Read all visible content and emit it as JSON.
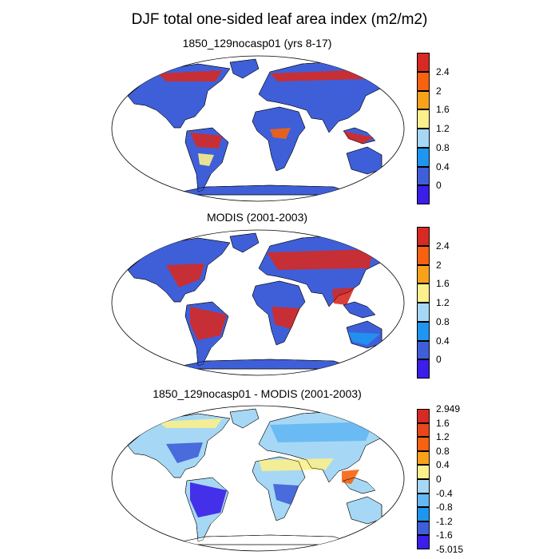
{
  "title": "DJF total one-sided leaf area index (m2/m2)",
  "chart_data": [
    {
      "type": "heatmap",
      "subtitle": "1850_129nocasp01 (yrs 8-17)",
      "colorbar": {
        "colors": [
          "#3b1ee8",
          "#3f5fd9",
          "#1e96f0",
          "#a6d8f5",
          "#fbf08c",
          "#f8a21b",
          "#f6620f",
          "#d62a23"
        ],
        "tick_labels": [
          "0",
          "0.4",
          "0.8",
          "1.2",
          "1.6",
          "2",
          "2.4"
        ]
      },
      "regions": [
        {
          "name": "boreal-north-america",
          "level": "high"
        },
        {
          "name": "boreal-eurasia",
          "level": "high"
        },
        {
          "name": "amazon",
          "level": "high"
        },
        {
          "name": "southeast-asia-maritime",
          "level": "high"
        },
        {
          "name": "central-africa",
          "level": "high"
        },
        {
          "name": "oceans-land-default",
          "level": "low"
        }
      ]
    },
    {
      "type": "heatmap",
      "subtitle": "MODIS (2001-2003)",
      "colorbar": {
        "colors": [
          "#3b1ee8",
          "#3f5fd9",
          "#1e96f0",
          "#a6d8f5",
          "#fbf08c",
          "#f8a21b",
          "#f6620f",
          "#d62a23"
        ],
        "tick_labels": [
          "0",
          "0.4",
          "0.8",
          "1.2",
          "1.6",
          "2",
          "2.4"
        ]
      },
      "regions": [
        {
          "name": "eastern-north-america",
          "level": "high"
        },
        {
          "name": "europe-siberia",
          "level": "high"
        },
        {
          "name": "amazon",
          "level": "high"
        },
        {
          "name": "southern-africa",
          "level": "high"
        },
        {
          "name": "southeast-asia",
          "level": "high"
        },
        {
          "name": "australia",
          "level": "low"
        }
      ]
    },
    {
      "type": "heatmap",
      "subtitle": "1850_129nocasp01 - MODIS (2001-2003)",
      "colorbar": {
        "colors": [
          "#3b1ee8",
          "#3f5fd9",
          "#1e96f0",
          "#64b8f4",
          "#a6d8f5",
          "#fbf08c",
          "#f8a21b",
          "#f6620f",
          "#e8471a",
          "#d62a23"
        ],
        "tick_labels": [
          "-5.015",
          "-1.6",
          "-1.2",
          "-0.8",
          "-0.4",
          "0",
          "0.4",
          "0.8",
          "1.2",
          "1.6",
          "2.949"
        ]
      },
      "regions": [
        {
          "name": "amazon",
          "level": "negative"
        },
        {
          "name": "eastern-north-america",
          "level": "negative"
        },
        {
          "name": "southern-africa",
          "level": "negative"
        },
        {
          "name": "sahara-arabia",
          "level": "zero"
        },
        {
          "name": "boreal-north",
          "level": "zero"
        },
        {
          "name": "southeast-asia",
          "level": "positive"
        }
      ]
    }
  ]
}
